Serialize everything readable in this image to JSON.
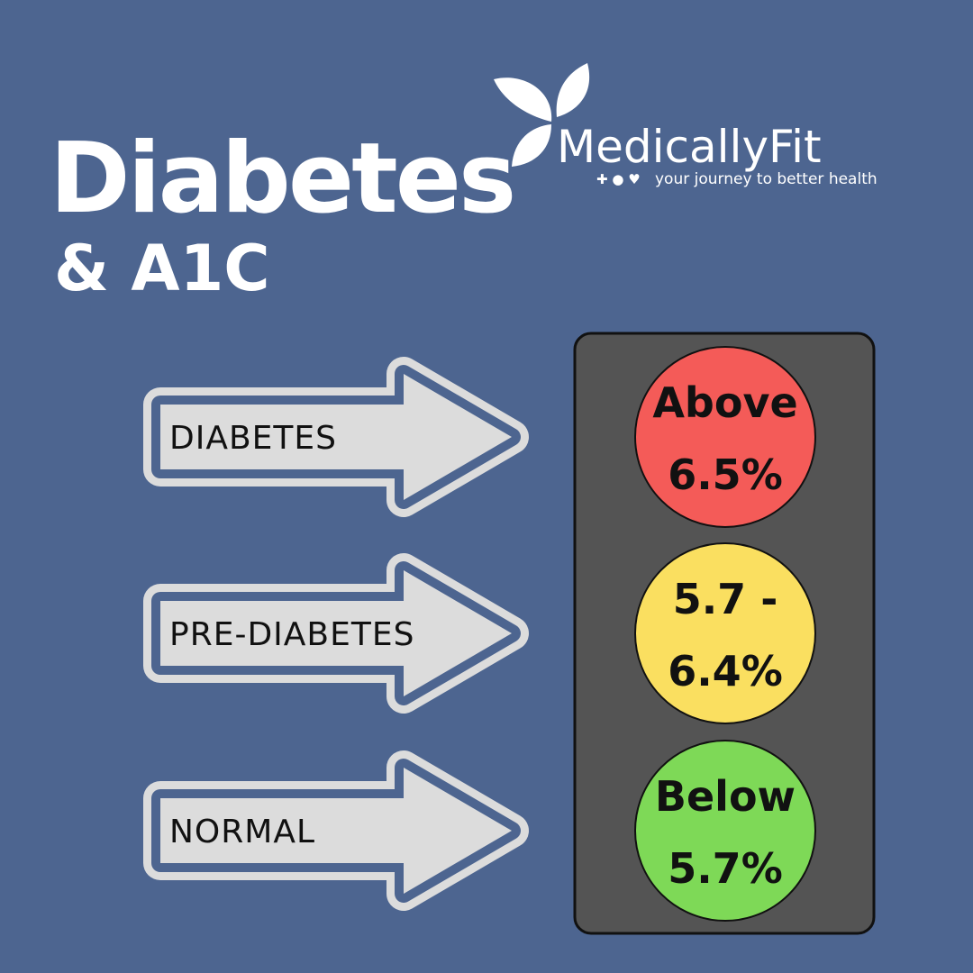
{
  "header": {
    "title": "Diabetes",
    "subtitle": "& A1C"
  },
  "logo": {
    "name": "MedicallyFit",
    "tagline": "your journey to better health"
  },
  "levels": [
    {
      "label": "DIABETES",
      "range_lines": [
        "Above",
        "6.5%"
      ]
    },
    {
      "label": "PRE-DIABETES",
      "range_lines": [
        "5.7 -",
        "6.4%"
      ]
    },
    {
      "label": "NORMAL",
      "range_lines": [
        "Below",
        "5.7%"
      ]
    }
  ]
}
